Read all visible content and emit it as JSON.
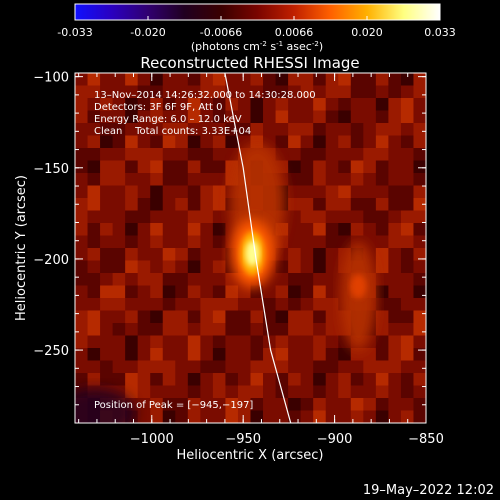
{
  "colorbar": {
    "ticks": [
      "-0.033",
      "-0.020",
      "-0.0066",
      "0.0066",
      "0.020",
      "0.033"
    ],
    "unit_main": "(photons cm",
    "unit_sup1": "-2",
    "unit_mid1": " s",
    "unit_sup2": "-1",
    "unit_mid2": " asec",
    "unit_sup3": "-2",
    "unit_end": ")",
    "gradient": [
      "#1010ff",
      "#2a00c0",
      "#300070",
      "#200020",
      "#3a0000",
      "#7a0400",
      "#c02000",
      "#ff6000",
      "#ffb000",
      "#ffff80",
      "#ffffff"
    ]
  },
  "chart_data": {
    "type": "heatmap",
    "title": "Reconstructed RHESSI Image",
    "xlabel": "Heliocentric X (arcsec)",
    "ylabel": "Heliocentric Y (arcsec)",
    "xlim": [
      -1042,
      -850
    ],
    "ylim": [
      -290,
      -98
    ],
    "xticks": [
      -1000,
      -950,
      -900,
      -850
    ],
    "yticks": [
      -100,
      -150,
      -200,
      -250
    ],
    "xtick_labels": [
      "−1000",
      "−950",
      "−900",
      "−850"
    ],
    "ytick_labels": [
      "−100",
      "−150",
      "−200",
      "−250"
    ],
    "value_range": [
      -0.033,
      0.033
    ],
    "peak": {
      "x": -945,
      "y": -197
    },
    "secondary_source": {
      "x": -887,
      "y": -215
    },
    "limb_curve": [
      [
        -960,
        -98
      ],
      [
        -950,
        -150
      ],
      [
        -943,
        -200
      ],
      [
        -935,
        -250
      ],
      [
        -924,
        -290
      ]
    ]
  },
  "info": {
    "line1": "13–Nov–2014 14:26:32.000 to 14:30:28.000",
    "line2": "Detectors: 3F 6F 9F, Att 0",
    "line3": "Energy Range: 6.0 – 12.0 keV",
    "line4": "Clean    Total counts: 3.33E+04"
  },
  "peak_label": "Position of Peak = [−945,−197]",
  "timestamp": "19–May–2022 12:02"
}
